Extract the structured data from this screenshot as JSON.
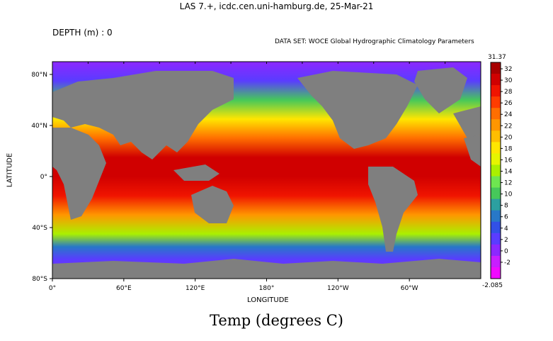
{
  "header": "LAS 7.+, icdc.cen.uni-hamburg.de, 25-Mar-21",
  "depth_label": "DEPTH (m) : 0",
  "dataset_label": "DATA SET: WOCE Global Hydrographic Climatology Parameters",
  "variable_title": "Temp (degrees C)",
  "xaxis_label": "LONGITUDE",
  "yaxis_label": "LATITUDE",
  "x_ticks": [
    "0°",
    "60°E",
    "120°E",
    "180°",
    "120°W",
    "60°W"
  ],
  "y_ticks": [
    "80°N",
    "40°N",
    "0°",
    "40°S",
    "80°S"
  ],
  "colorbar": {
    "max_value": "31.37",
    "min_value": "-2.085",
    "levels": [
      "32",
      "30",
      "28",
      "26",
      "24",
      "22",
      "20",
      "18",
      "16",
      "14",
      "12",
      "10",
      "8",
      "6",
      "4",
      "2",
      "0",
      "-2"
    ],
    "colors": [
      "#a80000",
      "#d00000",
      "#f01400",
      "#ff3c00",
      "#ff6e00",
      "#ff9600",
      "#ffbe00",
      "#ffe600",
      "#e6f500",
      "#aaf000",
      "#6ee650",
      "#46c85a",
      "#2ca0a0",
      "#2878c8",
      "#3250e6",
      "#5a3cff",
      "#8c28ff",
      "#c81eff",
      "#f00aff"
    ]
  },
  "map": {
    "land_color": "#7f7f7f",
    "bands": [
      {
        "lat": 90,
        "temp": "-1.8"
      },
      {
        "lat": 75,
        "temp": "0"
      },
      {
        "lat": 60,
        "temp": "8"
      },
      {
        "lat": 45,
        "temp": "16"
      },
      {
        "lat": 30,
        "temp": "22"
      },
      {
        "lat": 15,
        "temp": "28"
      },
      {
        "lat": 0,
        "temp": "29"
      },
      {
        "lat": -15,
        "temp": "27"
      },
      {
        "lat": -30,
        "temp": "20"
      },
      {
        "lat": -45,
        "temp": "12"
      },
      {
        "lat": -55,
        "temp": "4"
      },
      {
        "lat": -65,
        "temp": "0"
      },
      {
        "lat": -80,
        "temp": "-1.8"
      }
    ]
  }
}
